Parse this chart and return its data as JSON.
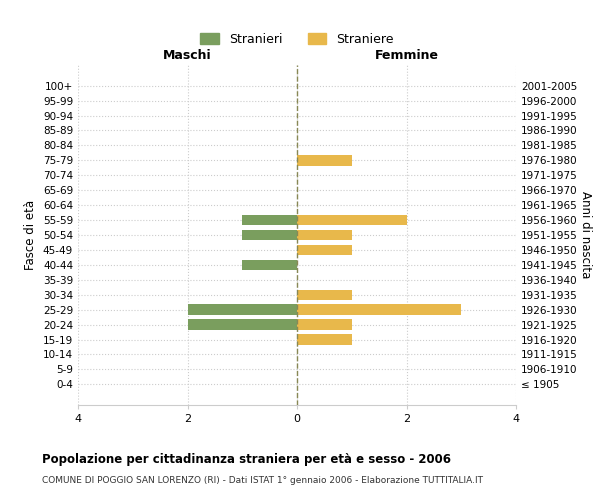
{
  "age_groups": [
    "100+",
    "95-99",
    "90-94",
    "85-89",
    "80-84",
    "75-79",
    "70-74",
    "65-69",
    "60-64",
    "55-59",
    "50-54",
    "45-49",
    "40-44",
    "35-39",
    "30-34",
    "25-29",
    "20-24",
    "15-19",
    "10-14",
    "5-9",
    "0-4"
  ],
  "birth_years": [
    "≤ 1905",
    "1906-1910",
    "1911-1915",
    "1916-1920",
    "1921-1925",
    "1926-1930",
    "1931-1935",
    "1936-1940",
    "1941-1945",
    "1946-1950",
    "1951-1955",
    "1956-1960",
    "1961-1965",
    "1966-1970",
    "1971-1975",
    "1976-1980",
    "1981-1985",
    "1986-1990",
    "1991-1995",
    "1996-2000",
    "2001-2005"
  ],
  "males": [
    0,
    0,
    0,
    0,
    0,
    0,
    0,
    0,
    0,
    1,
    1,
    0,
    1,
    0,
    0,
    2,
    2,
    0,
    0,
    0,
    0
  ],
  "females": [
    0,
    0,
    0,
    0,
    0,
    1,
    0,
    0,
    0,
    2,
    1,
    1,
    0,
    0,
    1,
    3,
    1,
    1,
    0,
    0,
    0
  ],
  "male_color": "#7a9e5e",
  "female_color": "#e8b84b",
  "background_color": "#ffffff",
  "grid_color": "#cccccc",
  "center_line_color": "#888855",
  "xlim": 4,
  "title": "Popolazione per cittadinanza straniera per età e sesso - 2006",
  "subtitle": "COMUNE DI POGGIO SAN LORENZO (RI) - Dati ISTAT 1° gennaio 2006 - Elaborazione TUTTITALIA.IT",
  "xlabel_left": "Maschi",
  "xlabel_right": "Femmine",
  "ylabel_left": "Fasce di età",
  "ylabel_right": "Anni di nascita",
  "legend_male": "Stranieri",
  "legend_female": "Straniere"
}
